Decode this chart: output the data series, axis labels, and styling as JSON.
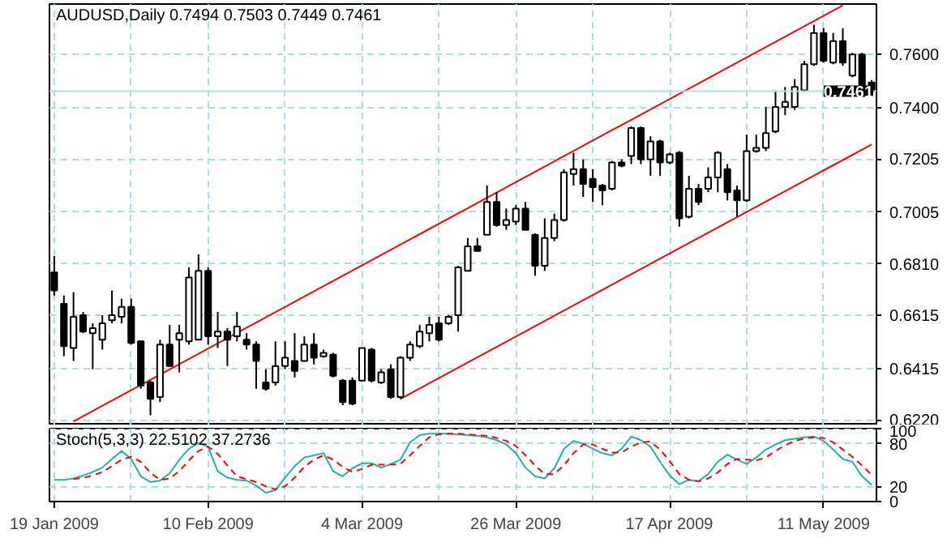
{
  "chart_data": [
    {
      "type": "candlestick",
      "title": "AUDUSD,Daily  0.7494 0.7503 0.7449 0.7461",
      "categories": [
        null,
        null,
        null,
        null,
        null,
        null,
        null,
        null,
        null,
        null,
        null,
        null,
        null,
        null,
        null,
        null,
        null,
        null,
        null,
        null,
        null,
        null,
        null,
        null,
        null,
        null,
        null,
        null,
        null,
        null,
        null,
        null,
        null,
        null,
        null,
        null,
        null,
        null,
        null,
        null,
        null,
        null,
        null,
        null,
        null,
        null,
        null,
        null,
        null,
        null,
        null,
        null,
        null,
        null,
        null,
        null,
        null,
        null,
        null,
        null,
        null,
        null,
        null,
        null,
        null,
        null,
        null,
        null,
        null,
        null,
        null,
        null,
        null,
        null,
        null,
        null,
        null,
        null,
        null,
        null,
        null,
        null,
        null,
        null,
        null,
        null
      ],
      "ohlc": [
        [
          0.6777,
          0.6839,
          0.669,
          0.6709
        ],
        [
          0.6659,
          0.669,
          0.6461,
          0.6499
        ],
        [
          0.6492,
          0.6703,
          0.6443,
          0.661
        ],
        [
          0.6616,
          0.6628,
          0.6548,
          0.6554
        ],
        [
          0.6548,
          0.6585,
          0.6412,
          0.6567
        ],
        [
          0.6523,
          0.6616,
          0.6486,
          0.6585
        ],
        [
          0.6597,
          0.6709,
          0.6585,
          0.6616
        ],
        [
          0.661,
          0.6678,
          0.6585,
          0.6647
        ],
        [
          0.6647,
          0.6678,
          0.6505,
          0.6511
        ],
        [
          0.6517,
          0.6517,
          0.6338,
          0.635
        ],
        [
          0.6362,
          0.6369,
          0.6238,
          0.63
        ],
        [
          0.6307,
          0.6523,
          0.6288,
          0.6505
        ],
        [
          0.6505,
          0.6579,
          0.6424,
          0.6424
        ],
        [
          0.6523,
          0.6579,
          0.64,
          0.6548
        ],
        [
          0.6517,
          0.6796,
          0.6505,
          0.6758
        ],
        [
          0.6523,
          0.6845,
          0.6523,
          0.6783
        ],
        [
          0.6783,
          0.6796,
          0.6505,
          0.6536
        ],
        [
          0.6536,
          0.6628,
          0.6492,
          0.6554
        ],
        [
          0.6554,
          0.6567,
          0.6424,
          0.6523
        ],
        [
          0.6536,
          0.6628,
          0.6517,
          0.6573
        ],
        [
          0.6523,
          0.6548,
          0.6486,
          0.6505
        ],
        [
          0.6505,
          0.6517,
          0.6338,
          0.6443
        ],
        [
          0.6362,
          0.6412,
          0.6331,
          0.6338
        ],
        [
          0.6362,
          0.6517,
          0.635,
          0.6424
        ],
        [
          0.6424,
          0.6517,
          0.6412,
          0.6455
        ],
        [
          0.6443,
          0.6548,
          0.6381,
          0.6406
        ],
        [
          0.6443,
          0.6536,
          0.6443,
          0.6505
        ],
        [
          0.6505,
          0.6548,
          0.643,
          0.6455
        ],
        [
          0.6461,
          0.6486,
          0.6455,
          0.6474
        ],
        [
          0.6467,
          0.6474,
          0.6381,
          0.6387
        ],
        [
          0.6369,
          0.6375,
          0.6276,
          0.6288
        ],
        [
          0.6369,
          0.6381,
          0.6276,
          0.6282
        ],
        [
          0.6369,
          0.6492,
          0.6369,
          0.6492
        ],
        [
          0.6486,
          0.6492,
          0.6362,
          0.6369
        ],
        [
          0.6362,
          0.6412,
          0.6356,
          0.64
        ],
        [
          0.6412,
          0.643,
          0.63,
          0.6307
        ],
        [
          0.6307,
          0.6461,
          0.63,
          0.6455
        ],
        [
          0.6455,
          0.6517,
          0.6443,
          0.6505
        ],
        [
          0.6499,
          0.6579,
          0.6492,
          0.6554
        ],
        [
          0.6548,
          0.661,
          0.6517,
          0.6579
        ],
        [
          0.6585,
          0.661,
          0.6517,
          0.6523
        ],
        [
          0.6585,
          0.6616,
          0.6579,
          0.661
        ],
        [
          0.6616,
          0.6802,
          0.6554,
          0.6796
        ],
        [
          0.6783,
          0.6907,
          0.6783,
          0.6876
        ],
        [
          0.6876,
          0.6907,
          0.6858,
          0.6858
        ],
        [
          0.6919,
          0.7105,
          0.6919,
          0.7043
        ],
        [
          0.7043,
          0.708,
          0.695,
          0.6956
        ],
        [
          0.6956,
          0.7018,
          0.6938,
          0.6975
        ],
        [
          0.6969,
          0.7031,
          0.6956,
          0.7018
        ],
        [
          0.7018,
          0.7043,
          0.6938,
          0.6938
        ],
        [
          0.6919,
          0.6925,
          0.6765,
          0.6802
        ],
        [
          0.6802,
          0.6981,
          0.6783,
          0.6907
        ],
        [
          0.6907,
          0.6999,
          0.6895,
          0.6975
        ],
        [
          0.6975,
          0.7167,
          0.6969,
          0.7155
        ],
        [
          0.7149,
          0.7229,
          0.7105,
          0.7167
        ],
        [
          0.7167,
          0.7204,
          0.7062,
          0.7111
        ],
        [
          0.713,
          0.7167,
          0.7043,
          0.7099
        ],
        [
          0.7105,
          0.7111,
          0.7031,
          0.7087
        ],
        [
          0.7093,
          0.7198,
          0.7087,
          0.7192
        ],
        [
          0.7192,
          0.7204,
          0.7174,
          0.718
        ],
        [
          0.7217,
          0.7328,
          0.7186,
          0.7322
        ],
        [
          0.7322,
          0.7328,
          0.7186,
          0.7204
        ],
        [
          0.7204,
          0.7291,
          0.7142,
          0.7272
        ],
        [
          0.7272,
          0.7278,
          0.7142,
          0.7192
        ],
        [
          0.7192,
          0.7229,
          0.7186,
          0.7223
        ],
        [
          0.7229,
          0.7235,
          0.695,
          0.6981
        ],
        [
          0.6987,
          0.7142,
          0.6981,
          0.7093
        ],
        [
          0.7093,
          0.7111,
          0.7031,
          0.7043
        ],
        [
          0.7093,
          0.7174,
          0.708,
          0.7136
        ],
        [
          0.7136,
          0.7235,
          0.708,
          0.7229
        ],
        [
          0.7167,
          0.7186,
          0.7049,
          0.708
        ],
        [
          0.7087,
          0.7105,
          0.6987,
          0.7049
        ],
        [
          0.7049,
          0.7297,
          0.7043,
          0.7235
        ],
        [
          0.7235,
          0.7297,
          0.7229,
          0.7247
        ],
        [
          0.7247,
          0.7402,
          0.7235,
          0.7303
        ],
        [
          0.7309,
          0.7464,
          0.7303,
          0.7402
        ],
        [
          0.7402,
          0.7477,
          0.7371,
          0.7421
        ],
        [
          0.7402,
          0.7507,
          0.739,
          0.7477
        ],
        [
          0.7464,
          0.7576,
          0.7458,
          0.7563
        ],
        [
          0.7563,
          0.7712,
          0.7557,
          0.7681
        ],
        [
          0.7681,
          0.7699,
          0.7569,
          0.7576
        ],
        [
          0.7569,
          0.7681,
          0.7563,
          0.765
        ],
        [
          0.765,
          0.7699,
          0.7557,
          0.7569
        ],
        [
          0.752,
          0.7606,
          0.7514,
          0.76
        ],
        [
          0.76,
          0.7606,
          0.7464,
          0.7483
        ],
        [
          0.7494,
          0.7503,
          0.7449,
          0.7461
        ]
      ],
      "series": [
        {
          "type": "line",
          "color": "#ff0000",
          "values": [
            null,
            null,
            0.6215,
            null,
            null,
            null,
            null,
            null,
            null,
            null,
            null,
            null,
            null,
            null,
            null,
            null,
            null,
            null,
            null,
            null,
            null,
            null,
            null,
            null,
            null,
            null,
            null,
            null,
            null,
            null,
            null,
            null,
            null,
            null,
            null,
            null,
            null,
            null,
            null,
            null,
            null,
            null,
            null,
            null,
            null,
            null,
            null,
            null,
            null,
            null,
            null,
            null,
            null,
            null,
            null,
            null,
            null,
            null,
            null,
            null,
            null,
            null,
            null,
            null,
            null,
            null,
            null,
            null,
            null,
            null,
            null,
            null,
            null,
            null,
            null,
            null,
            null,
            null,
            null,
            null,
            null,
            null,
            0.7785,
            null,
            null,
            null
          ]
        },
        {
          "type": "line",
          "color": "#ff0000",
          "values": [
            null,
            null,
            null,
            null,
            null,
            null,
            null,
            null,
            null,
            null,
            null,
            null,
            null,
            null,
            null,
            null,
            null,
            null,
            null,
            null,
            null,
            null,
            null,
            null,
            null,
            null,
            null,
            null,
            null,
            null,
            null,
            null,
            null,
            null,
            null,
            null,
            0.63,
            null,
            null,
            null,
            null,
            null,
            null,
            null,
            null,
            null,
            null,
            null,
            null,
            null,
            null,
            null,
            null,
            null,
            null,
            null,
            null,
            null,
            null,
            null,
            null,
            null,
            null,
            null,
            null,
            null,
            null,
            null,
            null,
            null,
            null,
            null,
            null,
            null,
            null,
            null,
            null,
            null,
            null,
            null,
            null,
            null,
            null,
            null,
            null,
            0.726
          ]
        }
      ],
      "ylim": [
        0.62,
        0.779
      ],
      "yticks": [
        {
          "value": 0.622,
          "label": "0.6220"
        },
        {
          "value": 0.6415,
          "label": "0.6415"
        },
        {
          "value": 0.6615,
          "label": "0.6615"
        },
        {
          "value": 0.681,
          "label": "0.6810"
        },
        {
          "value": 0.7005,
          "label": "0.7005"
        },
        {
          "value": 0.7205,
          "label": "0.7205"
        },
        {
          "value": 0.74,
          "label": "0.7400"
        },
        {
          "value": 0.76,
          "label": "0.7600"
        }
      ],
      "ref_lines": [
        {
          "axis": "y",
          "value": 0.7461,
          "label": "0.7461",
          "color": "#b0e0e0"
        }
      ],
      "grid": true,
      "tick_labels": "y"
    },
    {
      "type": "line",
      "title": "Stoch(5,3,3) 22.5102 37.2736",
      "categories": [
        "19 Jan 2009",
        null,
        null,
        null,
        null,
        null,
        null,
        null,
        null,
        null,
        null,
        null,
        null,
        null,
        null,
        null,
        "10 Feb 2009",
        null,
        null,
        null,
        null,
        null,
        null,
        null,
        null,
        null,
        null,
        null,
        null,
        null,
        null,
        null,
        "4 Mar 2009",
        null,
        null,
        null,
        null,
        null,
        null,
        null,
        null,
        null,
        null,
        null,
        null,
        null,
        null,
        null,
        "26 Mar 2009",
        null,
        null,
        null,
        null,
        null,
        null,
        null,
        null,
        null,
        null,
        null,
        null,
        null,
        null,
        null,
        "17 Apr 2009",
        null,
        null,
        null,
        null,
        null,
        null,
        null,
        null,
        null,
        null,
        null,
        null,
        null,
        null,
        null,
        "11 May 2009",
        null,
        null,
        null,
        null,
        null
      ],
      "series": [
        {
          "color": "#20b2aa",
          "line_style": "solid",
          "values": [
            30,
            30,
            32,
            36,
            41,
            47,
            59,
            70,
            59,
            35,
            27,
            29,
            39,
            58,
            73,
            81,
            76,
            42,
            33,
            30,
            29,
            22,
            12,
            16,
            33,
            49,
            61,
            64,
            67,
            42,
            35,
            46,
            53,
            53,
            47,
            52,
            58,
            82,
            92,
            94,
            94,
            94,
            93,
            92,
            91,
            89,
            85,
            79,
            67,
            47,
            35,
            32,
            46,
            73,
            84,
            80,
            73,
            67,
            64,
            73,
            90,
            85,
            76,
            55,
            36,
            24,
            30,
            28,
            38,
            55,
            65,
            58,
            52,
            61,
            72,
            79,
            85,
            87,
            89,
            90,
            84,
            72,
            59,
            55,
            35,
            23
          ]
        },
        {
          "color": "#ff0000",
          "line_style": "dashed",
          "values": [
            null,
            null,
            31,
            33,
            36,
            41,
            49,
            58,
            62,
            55,
            40,
            30,
            32,
            42,
            57,
            70,
            76,
            66,
            50,
            35,
            31,
            27,
            21,
            17,
            21,
            33,
            48,
            58,
            64,
            58,
            48,
            41,
            45,
            51,
            51,
            51,
            52,
            64,
            77,
            89,
            93,
            94,
            94,
            93,
            92,
            91,
            88,
            84,
            77,
            64,
            50,
            38,
            38,
            50,
            67,
            79,
            79,
            73,
            68,
            68,
            76,
            82,
            83,
            72,
            56,
            38,
            30,
            28,
            32,
            40,
            52,
            59,
            58,
            57,
            61,
            70,
            78,
            84,
            87,
            89,
            88,
            82,
            72,
            62,
            50,
            37
          ]
        }
      ],
      "ylim": [
        0,
        101
      ],
      "yticks": [
        0,
        20,
        80,
        100
      ],
      "grid": true
    }
  ]
}
